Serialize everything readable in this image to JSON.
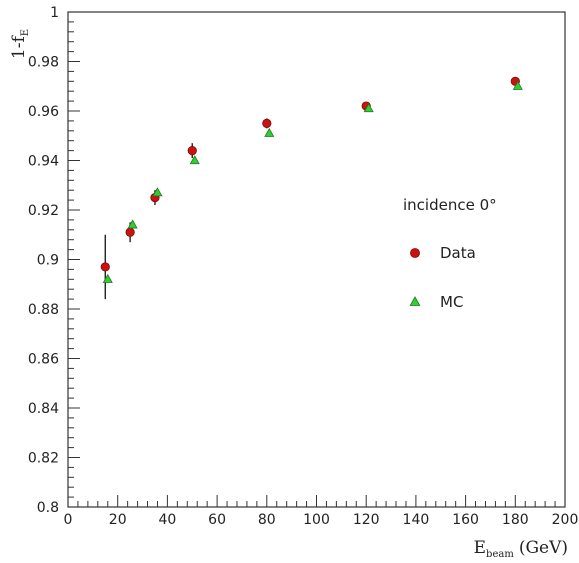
{
  "chart_data": {
    "type": "scatter",
    "title": "",
    "xlabel": "E",
    "xlabel_sub": "beam",
    "xlabel_unit": "(GeV)",
    "ylabel": "1-f",
    "ylabel_sub": "E",
    "xlim": [
      0,
      200
    ],
    "ylim": [
      0.8,
      1.0
    ],
    "x_ticks": [
      0,
      20,
      40,
      60,
      80,
      100,
      120,
      140,
      160,
      180,
      200
    ],
    "y_ticks": [
      0.8,
      0.82,
      0.84,
      0.86,
      0.88,
      0.9,
      0.92,
      0.94,
      0.96,
      0.98,
      1
    ],
    "y_tick_labels": [
      "0.8",
      "0.82",
      "0.84",
      "0.86",
      "0.88",
      "0.9",
      "0.92",
      "0.94",
      "0.96",
      "0.98",
      "1"
    ],
    "grid": false,
    "legend_title": "incidence 0°",
    "legend_position": "right",
    "series": [
      {
        "name": "Data",
        "marker": "circle",
        "color": "#cc1111",
        "points": [
          {
            "x": 15,
            "y": 0.897,
            "err": 0.013
          },
          {
            "x": 25,
            "y": 0.911,
            "err": 0.004
          },
          {
            "x": 35,
            "y": 0.925,
            "err": 0.003
          },
          {
            "x": 50,
            "y": 0.944,
            "err": 0.003
          },
          {
            "x": 80,
            "y": 0.955,
            "err": 0.002
          },
          {
            "x": 120,
            "y": 0.962,
            "err": 0.001
          },
          {
            "x": 180,
            "y": 0.972,
            "err": 0.001
          }
        ]
      },
      {
        "name": "MC",
        "marker": "triangle",
        "color": "#33cc33",
        "points": [
          {
            "x": 16,
            "y": 0.892
          },
          {
            "x": 26,
            "y": 0.914
          },
          {
            "x": 36,
            "y": 0.927
          },
          {
            "x": 51,
            "y": 0.94
          },
          {
            "x": 81,
            "y": 0.951
          },
          {
            "x": 121,
            "y": 0.961
          },
          {
            "x": 181,
            "y": 0.97
          }
        ]
      }
    ]
  }
}
